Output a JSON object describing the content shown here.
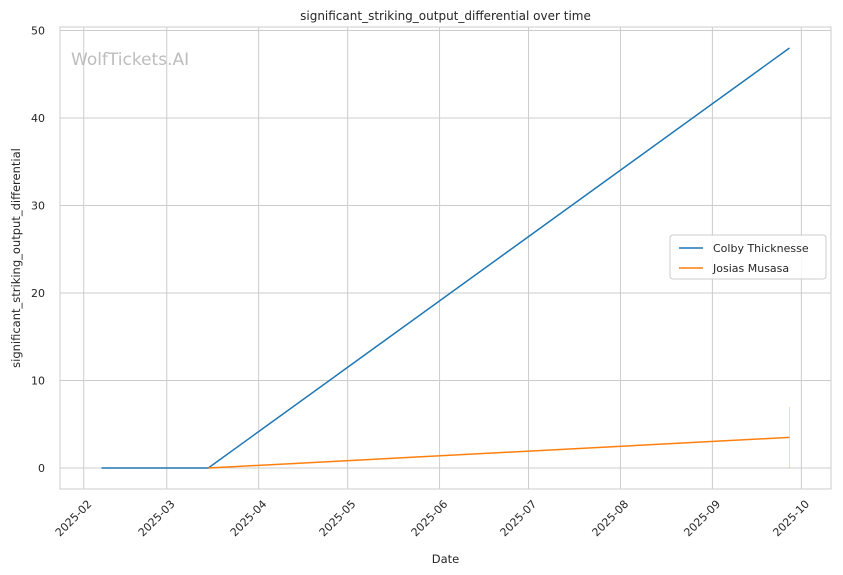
{
  "watermark": "WolfTickets.AI",
  "chart_data": {
    "type": "line",
    "title": "significant_striking_output_differential over time",
    "xlabel": "Date",
    "ylabel": "significant_striking_output_differential",
    "x_type": "date",
    "xlim": [
      "2025-01-24",
      "2025-10-11"
    ],
    "ylim": [
      -2.4,
      50.4
    ],
    "x_ticks": [
      "2025-02-01",
      "2025-03-01",
      "2025-04-01",
      "2025-05-01",
      "2025-06-01",
      "2025-07-01",
      "2025-08-01",
      "2025-09-01",
      "2025-10-01"
    ],
    "x_tick_labels": [
      "2025-02",
      "2025-03",
      "2025-04",
      "2025-05",
      "2025-06",
      "2025-07",
      "2025-08",
      "2025-09",
      "2025-10"
    ],
    "y_ticks": [
      0,
      10,
      20,
      30,
      40,
      50
    ],
    "y_tick_labels": [
      "0",
      "10",
      "20",
      "30",
      "40",
      "50"
    ],
    "grid": true,
    "legend_position": "center-right",
    "series": [
      {
        "name": "Colby Thicknesse",
        "color": "#1f77b4",
        "x": [
          "2025-02-07",
          "2025-03-15",
          "2025-09-27"
        ],
        "y": [
          0,
          0,
          48
        ]
      },
      {
        "name": "Josias Musasa",
        "color": "#ff7f0e",
        "x": [
          "2025-03-15",
          "2025-09-27"
        ],
        "y": [
          0,
          3.5
        ],
        "error_band": {
          "x": "2025-09-27",
          "low": 0,
          "high": 7
        }
      }
    ]
  }
}
